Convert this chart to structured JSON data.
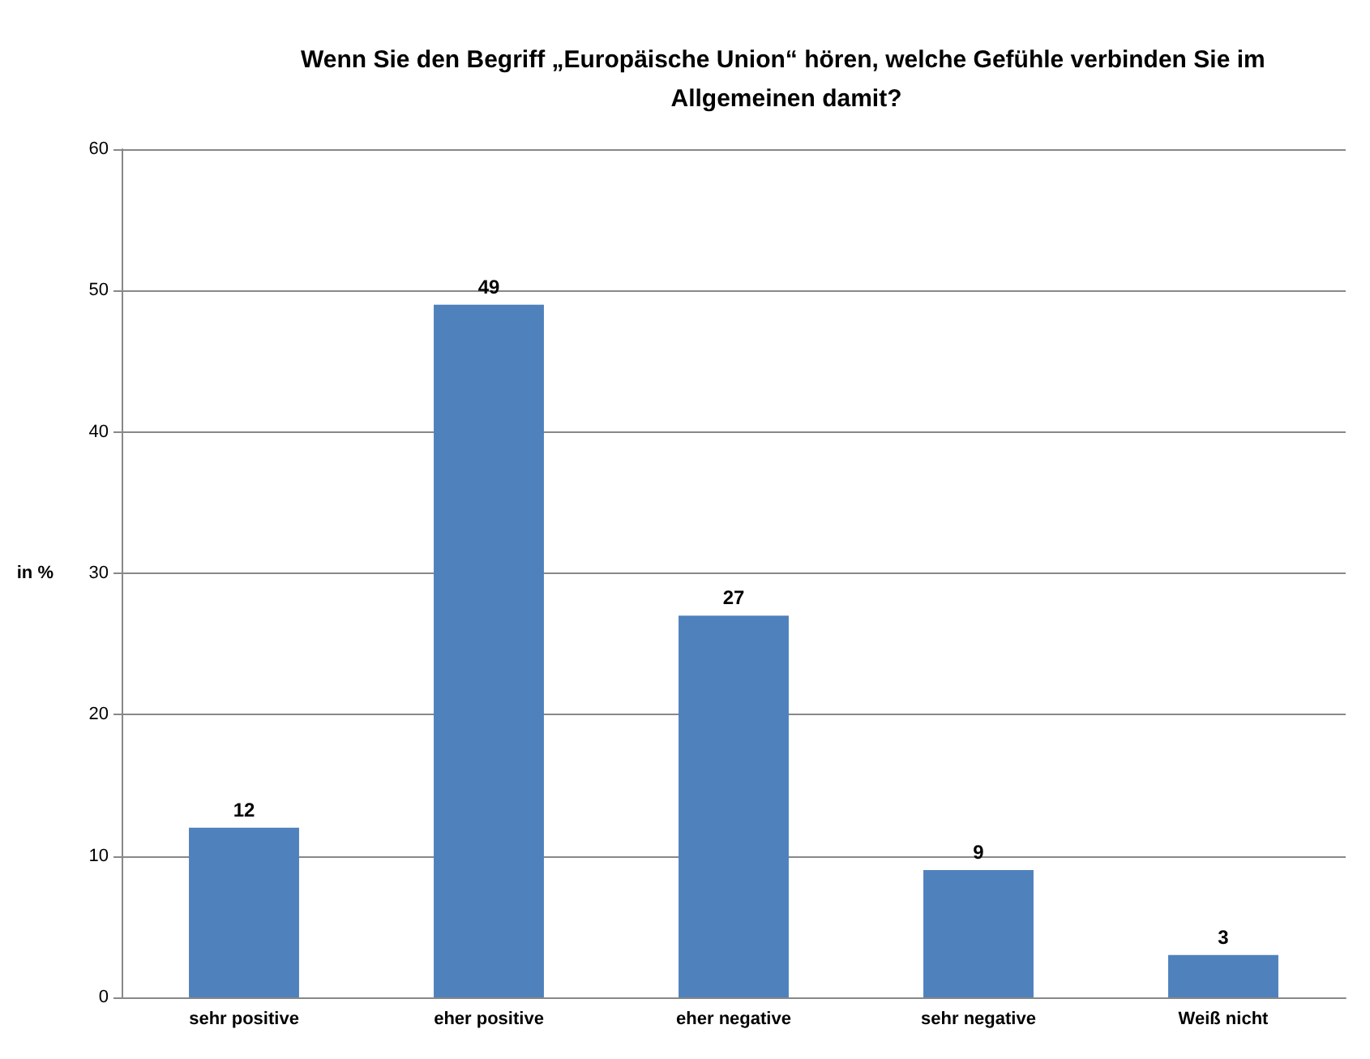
{
  "chart_data": {
    "type": "bar",
    "title": "Wenn Sie den Begriff „Europäische Union“ hören, welche Gefühle verbinden Sie im Allgemeinen damit?",
    "ylabel": "in %",
    "categories": [
      "sehr positive",
      "eher positive",
      "eher negative",
      "sehr negative",
      "Weiß nicht"
    ],
    "values": [
      12,
      49,
      27,
      9,
      3
    ],
    "color": "#4f81bd",
    "ylim": [
      0,
      60
    ],
    "yticks": [
      0,
      10,
      20,
      30,
      40,
      50,
      60
    ],
    "grid": "y",
    "data_labels": true
  }
}
